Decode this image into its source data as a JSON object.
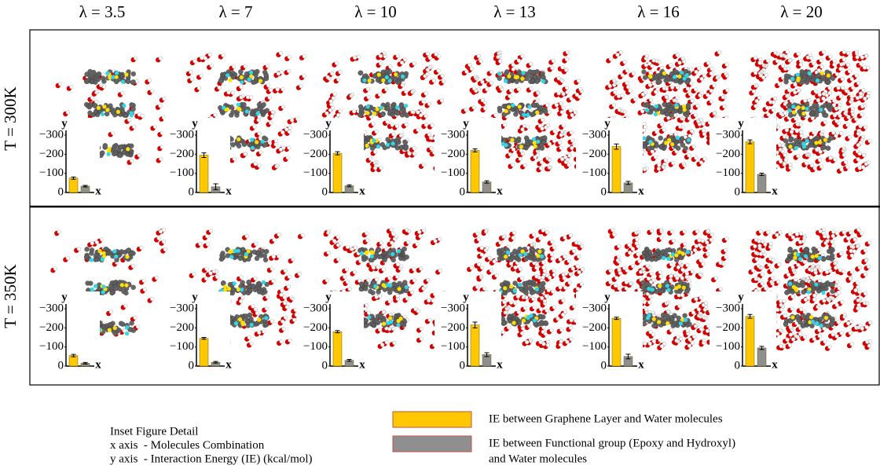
{
  "columns": [
    "λ = 3.5",
    "λ = 7",
    "λ = 10",
    "λ = 13",
    "λ = 16",
    "λ = 20"
  ],
  "rows": [
    "T = 300K",
    "T = 350K"
  ],
  "inset_detail": [
    "Inset Figure Detail",
    "x axis  - Molecules Combination",
    "y axis  - Interaction Energy (IE) (kcal/mol)"
  ],
  "legend": [
    {
      "lines": [
        "IE between Graphene Layer and Water molecules"
      ],
      "color": "#ffc800"
    },
    {
      "lines": [
        "IE between Functional group (Epoxy and Hydroxyl)",
        "and Water molecules"
      ],
      "color": "#8f8f8f"
    }
  ],
  "chart_data": [
    {
      "type": "bar",
      "x_label": "x",
      "y_label": "y",
      "categories": [
        null,
        null
      ],
      "values": [
        -75,
        -33
      ],
      "errors": [
        6,
        4
      ],
      "colors": [
        "#ffc800",
        "#8f8f8f"
      ],
      "ylim": [
        0,
        -300
      ],
      "yticks": [
        {
          "value": -300,
          "label": "−300"
        },
        {
          "value": -200,
          "label": "−200"
        },
        {
          "value": -100,
          "label": "−100"
        },
        0
      ]
    },
    {
      "type": "bar",
      "x_label": "x",
      "y_label": "y",
      "categories": [
        null,
        null
      ],
      "values": [
        -195,
        -30
      ],
      "errors": [
        12,
        15
      ],
      "colors": [
        "#ffc800",
        "#8f8f8f"
      ],
      "ylim": [
        0,
        -300
      ],
      "yticks": [
        {
          "value": -300,
          "label": "−300"
        },
        {
          "value": -200,
          "label": "−200"
        },
        {
          "value": -100,
          "label": "−100"
        },
        0
      ]
    },
    {
      "type": "bar",
      "x_label": "x",
      "y_label": "y",
      "categories": [
        null,
        null
      ],
      "values": [
        -205,
        -35
      ],
      "errors": [
        8,
        5
      ],
      "colors": [
        "#ffc800",
        "#8f8f8f"
      ],
      "ylim": [
        0,
        -300
      ],
      "yticks": [
        {
          "value": -300,
          "label": "−300"
        },
        {
          "value": -200,
          "label": "−200"
        },
        {
          "value": -100,
          "label": "−100"
        },
        0
      ]
    },
    {
      "type": "bar",
      "x_label": "x",
      "y_label": "y",
      "categories": [
        null,
        null
      ],
      "values": [
        -220,
        -55
      ],
      "errors": [
        8,
        6
      ],
      "colors": [
        "#ffc800",
        "#8f8f8f"
      ],
      "ylim": [
        0,
        -300
      ],
      "yticks": [
        {
          "value": -300,
          "label": "−300"
        },
        {
          "value": -200,
          "label": "−200"
        },
        {
          "value": -100,
          "label": "−100"
        },
        0
      ]
    },
    {
      "type": "bar",
      "x_label": "x",
      "y_label": "y",
      "categories": [
        null,
        null
      ],
      "values": [
        -240,
        -50
      ],
      "errors": [
        14,
        8
      ],
      "colors": [
        "#ffc800",
        "#8f8f8f"
      ],
      "ylim": [
        0,
        -300
      ],
      "yticks": [
        {
          "value": -300,
          "label": "−300"
        },
        {
          "value": -200,
          "label": "−200"
        },
        {
          "value": -100,
          "label": "−100"
        },
        0
      ]
    },
    {
      "type": "bar",
      "x_label": "x",
      "y_label": "y",
      "categories": [
        null,
        null
      ],
      "values": [
        -265,
        -95
      ],
      "errors": [
        10,
        6
      ],
      "colors": [
        "#ffc800",
        "#8f8f8f"
      ],
      "ylim": [
        0,
        -300
      ],
      "yticks": [
        {
          "value": -300,
          "label": "−300"
        },
        {
          "value": -200,
          "label": "−200"
        },
        {
          "value": -100,
          "label": "−100"
        },
        0
      ]
    },
    {
      "type": "bar",
      "x_label": "x",
      "y_label": "y",
      "categories": [
        null,
        null
      ],
      "values": [
        -55,
        -15
      ],
      "errors": [
        6,
        4
      ],
      "colors": [
        "#ffc800",
        "#8f8f8f"
      ],
      "ylim": [
        0,
        -300
      ],
      "yticks": [
        {
          "value": -300,
          "label": "−300"
        },
        {
          "value": -200,
          "label": "−200"
        },
        {
          "value": -100,
          "label": "−100"
        },
        0
      ]
    },
    {
      "type": "bar",
      "x_label": "x",
      "y_label": "y",
      "categories": [
        null,
        null
      ],
      "values": [
        -145,
        -20
      ],
      "errors": [
        5,
        4
      ],
      "colors": [
        "#ffc800",
        "#8f8f8f"
      ],
      "ylim": [
        0,
        -300
      ],
      "yticks": [
        {
          "value": -300,
          "label": "−300"
        },
        {
          "value": -200,
          "label": "−200"
        },
        {
          "value": -100,
          "label": "−100"
        },
        0
      ]
    },
    {
      "type": "bar",
      "x_label": "x",
      "y_label": "y",
      "categories": [
        null,
        null
      ],
      "values": [
        -180,
        -30
      ],
      "errors": [
        6,
        5
      ],
      "colors": [
        "#ffc800",
        "#8f8f8f"
      ],
      "ylim": [
        0,
        -300
      ],
      "yticks": [
        {
          "value": -300,
          "label": "−300"
        },
        {
          "value": -200,
          "label": "−200"
        },
        {
          "value": -100,
          "label": "−100"
        },
        0
      ]
    },
    {
      "type": "bar",
      "x_label": "x",
      "y_label": "y",
      "categories": [
        null,
        null
      ],
      "values": [
        -215,
        -60
      ],
      "errors": [
        15,
        10
      ],
      "colors": [
        "#ffc800",
        "#8f8f8f"
      ],
      "ylim": [
        0,
        -300
      ],
      "yticks": [
        {
          "value": -300,
          "label": "−300"
        },
        {
          "value": -200,
          "label": "−200"
        },
        {
          "value": -100,
          "label": "−100"
        },
        0
      ]
    },
    {
      "type": "bar",
      "x_label": "x",
      "y_label": "y",
      "categories": [
        null,
        null
      ],
      "values": [
        -250,
        -50
      ],
      "errors": [
        6,
        12
      ],
      "colors": [
        "#ffc800",
        "#8f8f8f"
      ],
      "ylim": [
        0,
        -300
      ],
      "yticks": [
        {
          "value": -300,
          "label": "−300"
        },
        {
          "value": -200,
          "label": "−200"
        },
        {
          "value": -100,
          "label": "−100"
        },
        0
      ]
    },
    {
      "type": "bar",
      "x_label": "x",
      "y_label": "y",
      "categories": [
        null,
        null
      ],
      "values": [
        -260,
        -95
      ],
      "errors": [
        10,
        8
      ],
      "colors": [
        "#ffc800",
        "#8f8f8f"
      ],
      "ylim": [
        0,
        -300
      ],
      "yticks": [
        {
          "value": -300,
          "label": "−300"
        },
        {
          "value": -200,
          "label": "−200"
        },
        {
          "value": -100,
          "label": "−100"
        },
        0
      ]
    }
  ]
}
